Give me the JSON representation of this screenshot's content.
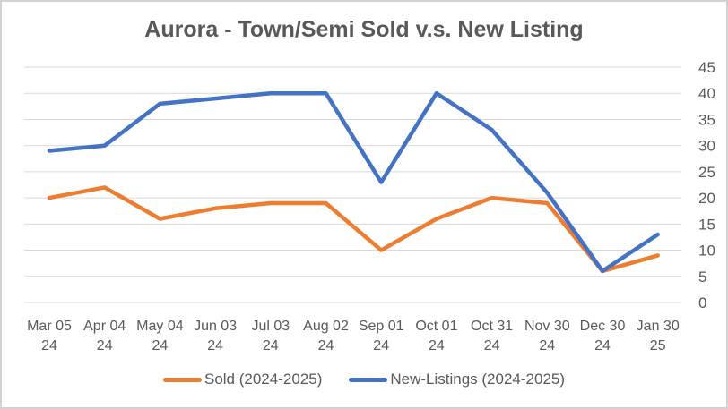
{
  "chart": {
    "title": "Aurora - Town/Semi Sold v.s. New Listing"
  },
  "chart_data": {
    "type": "line",
    "title": "Aurora - Town/Semi Sold v.s. New Listing",
    "categories": [
      "Mar 05 24",
      "Apr 04 24",
      "May 04 24",
      "Jun 03 24",
      "Jul 03 24",
      "Aug 02 24",
      "Sep 01 24",
      "Oct 01 24",
      "Oct 31 24",
      "Nov 30 24",
      "Dec 30 24",
      "Jan 30 25"
    ],
    "series": [
      {
        "name": "Sold (2024-2025)",
        "color": "#ED7D31",
        "values": [
          20,
          22,
          16,
          18,
          19,
          19,
          10,
          16,
          20,
          19,
          6,
          9
        ]
      },
      {
        "name": "New-Listings (2024-2025)",
        "color": "#4472C4",
        "values": [
          29,
          30,
          38,
          39,
          40,
          40,
          23,
          40,
          33,
          21,
          6,
          13
        ]
      }
    ],
    "xlabel": "",
    "ylabel": "",
    "ylim": [
      0,
      45
    ],
    "yticks": [
      0,
      5,
      10,
      15,
      20,
      25,
      30,
      35,
      40,
      45
    ],
    "y_axis_side": "right",
    "grid": "horizontal",
    "legend_position": "bottom",
    "colors": {
      "grid": "#d9d9d9",
      "text": "#595959",
      "background": "#ffffff",
      "border": "#d2d2d2"
    }
  }
}
